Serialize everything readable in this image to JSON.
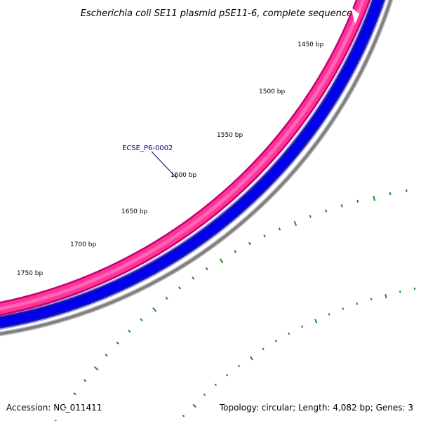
{
  "title": "Escherichia coli SE11 plasmid pSE11-6, complete sequence",
  "feature": {
    "label": "ECSE_P6-0002"
  },
  "bp_labels": [
    "1450 bp",
    "1500 bp",
    "1550 bp",
    "1600 bp",
    "1650 bp",
    "1700 bp",
    "1750 bp"
  ],
  "footer": {
    "accession": "Accession: NC_011411",
    "summary": "Topology: circular; Length: 4,082 bp; Genes: 3"
  },
  "colors": {
    "gene_fill": "#ff3399",
    "gene_edge": "#c8006e",
    "gene_highlight": "#ff66b3",
    "cds_fill": "#0000ee",
    "cds_edge": "#1a1a99",
    "cds_light": "#9999ff",
    "backbone": "#808080",
    "tick": "#1a8a1a",
    "feature_label": "#00008b"
  }
}
